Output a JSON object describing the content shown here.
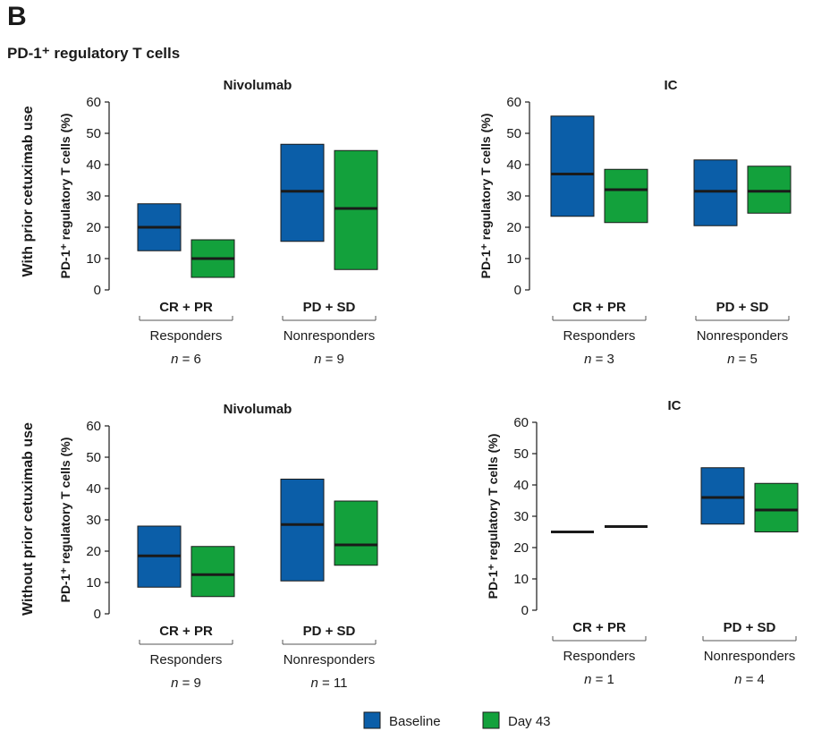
{
  "panel_letter": "B",
  "figure_title": "PD-1⁺ regulatory T cells",
  "row_labels": [
    "With prior cetuximab use",
    "Without prior cetuximab use"
  ],
  "colors": {
    "Baseline": "#0b5ea8",
    "Day 43": "#13a13c",
    "median": "#1a1a1a"
  },
  "legend": [
    {
      "name": "Baseline",
      "color": "#0b5ea8"
    },
    {
      "name": "Day 43",
      "color": "#13a13c"
    }
  ],
  "chart_data": [
    {
      "type": "box",
      "title": "Nivolumab",
      "row": "With prior cetuximab use",
      "ylabel": "PD-1⁺ regulatory T cells (%)",
      "ylim": [
        0,
        60
      ],
      "yticks": [
        0,
        10,
        20,
        30,
        40,
        50,
        60
      ],
      "groups": [
        {
          "label": "CR + PR",
          "sublabel": "Responders",
          "n": "6",
          "boxes": [
            {
              "series": "Baseline",
              "low": 12.5,
              "median": 20,
              "high": 27.5
            },
            {
              "series": "Day 43",
              "low": 4,
              "median": 10,
              "high": 16
            }
          ]
        },
        {
          "label": "PD + SD",
          "sublabel": "Nonresponders",
          "n": "9",
          "boxes": [
            {
              "series": "Baseline",
              "low": 15.5,
              "median": 31.5,
              "high": 46.5
            },
            {
              "series": "Day 43",
              "low": 6.5,
              "median": 26,
              "high": 44.5
            }
          ]
        }
      ]
    },
    {
      "type": "box",
      "title": "IC",
      "row": "With prior cetuximab use",
      "ylabel": "PD-1⁺ regulatory T cells (%)",
      "ylim": [
        0,
        60
      ],
      "yticks": [
        0,
        10,
        20,
        30,
        40,
        50,
        60
      ],
      "groups": [
        {
          "label": "CR + PR",
          "sublabel": "Responders",
          "n": "3",
          "boxes": [
            {
              "series": "Baseline",
              "low": 23.5,
              "median": 37,
              "high": 55.5
            },
            {
              "series": "Day 43",
              "low": 21.5,
              "median": 32,
              "high": 38.5
            }
          ]
        },
        {
          "label": "PD + SD",
          "sublabel": "Nonresponders",
          "n": "5",
          "boxes": [
            {
              "series": "Baseline",
              "low": 20.5,
              "median": 31.5,
              "high": 41.5
            },
            {
              "series": "Day 43",
              "low": 24.5,
              "median": 31.5,
              "high": 39.5
            }
          ]
        }
      ]
    },
    {
      "type": "box",
      "title": "Nivolumab",
      "row": "Without prior cetuximab use",
      "ylabel": "PD-1⁺ regulatory T cells (%)",
      "ylim": [
        0,
        60
      ],
      "yticks": [
        0,
        10,
        20,
        30,
        40,
        50,
        60
      ],
      "groups": [
        {
          "label": "CR + PR",
          "sublabel": "Responders",
          "n": "9",
          "boxes": [
            {
              "series": "Baseline",
              "low": 8.5,
              "median": 18.5,
              "high": 28
            },
            {
              "series": "Day 43",
              "low": 5.5,
              "median": 12.5,
              "high": 21.5
            }
          ]
        },
        {
          "label": "PD + SD",
          "sublabel": "Nonresponders",
          "n": "11",
          "boxes": [
            {
              "series": "Baseline",
              "low": 10.5,
              "median": 28.5,
              "high": 43
            },
            {
              "series": "Day 43",
              "low": 15.5,
              "median": 22,
              "high": 36
            }
          ]
        }
      ]
    },
    {
      "type": "box",
      "title": "IC",
      "row": "Without prior cetuximab use",
      "ylabel": "PD-1⁺ regulatory T cells (%)",
      "ylim": [
        0,
        60
      ],
      "yticks": [
        0,
        10,
        20,
        30,
        40,
        50,
        60
      ],
      "groups": [
        {
          "label": "CR + PR",
          "sublabel": "Responders",
          "n": "1",
          "boxes": [
            {
              "series": "Baseline",
              "low": 25,
              "median": 25,
              "high": 25
            },
            {
              "series": "Day 43",
              "low": 26.7,
              "median": 26.7,
              "high": 26.7
            }
          ]
        },
        {
          "label": "PD + SD",
          "sublabel": "Nonresponders",
          "n": "4",
          "boxes": [
            {
              "series": "Baseline",
              "low": 27.5,
              "median": 36,
              "high": 45.5
            },
            {
              "series": "Day 43",
              "low": 25,
              "median": 32,
              "high": 40.5
            }
          ]
        }
      ]
    }
  ]
}
